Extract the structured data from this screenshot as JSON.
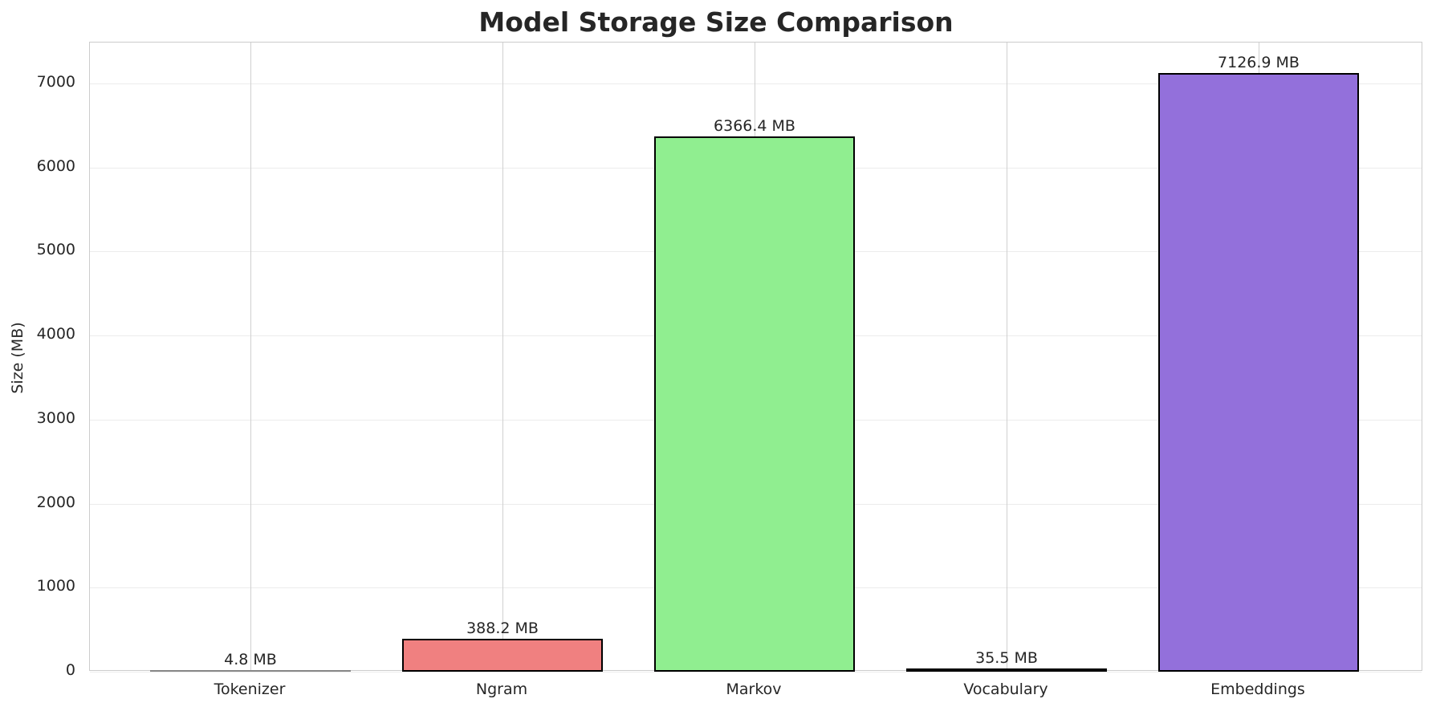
{
  "chart_data": {
    "type": "bar",
    "title": "Model Storage Size Comparison",
    "xlabel": "",
    "ylabel": "Size (MB)",
    "categories": [
      "Tokenizer",
      "Ngram",
      "Markov",
      "Vocabulary",
      "Embeddings"
    ],
    "values": [
      4.8,
      388.2,
      6366.4,
      35.5,
      7126.9
    ],
    "value_labels": [
      "4.8 MB",
      "388.2 MB",
      "6366.4 MB",
      "35.5 MB",
      "7126.9 MB"
    ],
    "colors": [
      "#87ceeb",
      "#f08080",
      "#90ee90",
      "#ffd700",
      "#9370db"
    ],
    "ylim": [
      0,
      7485
    ],
    "yticks": [
      0,
      1000,
      2000,
      3000,
      4000,
      5000,
      6000,
      7000
    ],
    "grid": true,
    "legend": null
  }
}
